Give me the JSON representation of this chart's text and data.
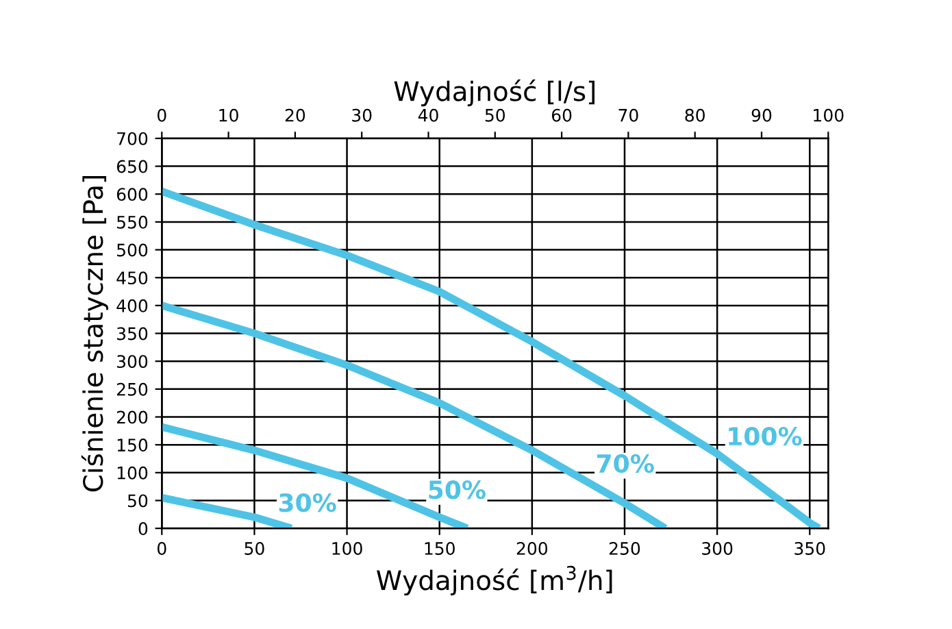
{
  "chart_data": {
    "type": "line",
    "xlabel": "Wydajność [m$^{3}$/h]",
    "ylabel": "Ciśnienie statyczne [Pa]",
    "x2label": "Wydajność [l/s]",
    "xlim": [
      0,
      360
    ],
    "xticks": [
      0,
      50,
      100,
      150,
      200,
      250,
      300,
      350
    ],
    "x2lim": [
      0,
      100
    ],
    "x2ticks": [
      0,
      10,
      20,
      30,
      40,
      50,
      60,
      70,
      80,
      90,
      100
    ],
    "ylim": [
      0,
      700
    ],
    "yticks": [
      0,
      50,
      100,
      150,
      200,
      250,
      300,
      350,
      400,
      450,
      500,
      550,
      600,
      650,
      700
    ],
    "grid": true,
    "legend": false,
    "marker": "none",
    "line_style": "solid",
    "series": [
      {
        "name": "100%",
        "color": "#4fc3e6",
        "x": [
          0,
          50,
          100,
          150,
          200,
          250,
          300,
          350,
          355
        ],
        "values": [
          605,
          545,
          490,
          425,
          335,
          238,
          134,
          10,
          0
        ]
      },
      {
        "name": "70%",
        "color": "#4fc3e6",
        "x": [
          0,
          50,
          100,
          150,
          200,
          250,
          272
        ],
        "values": [
          400,
          350,
          293,
          225,
          140,
          45,
          0
        ]
      },
      {
        "name": "50%",
        "color": "#4fc3e6",
        "x": [
          0,
          50,
          100,
          150,
          165
        ],
        "values": [
          182,
          140,
          90,
          20,
          0
        ]
      },
      {
        "name": "30%",
        "color": "#4fc3e6",
        "x": [
          0,
          50,
          70
        ],
        "values": [
          55,
          20,
          0
        ]
      }
    ]
  }
}
